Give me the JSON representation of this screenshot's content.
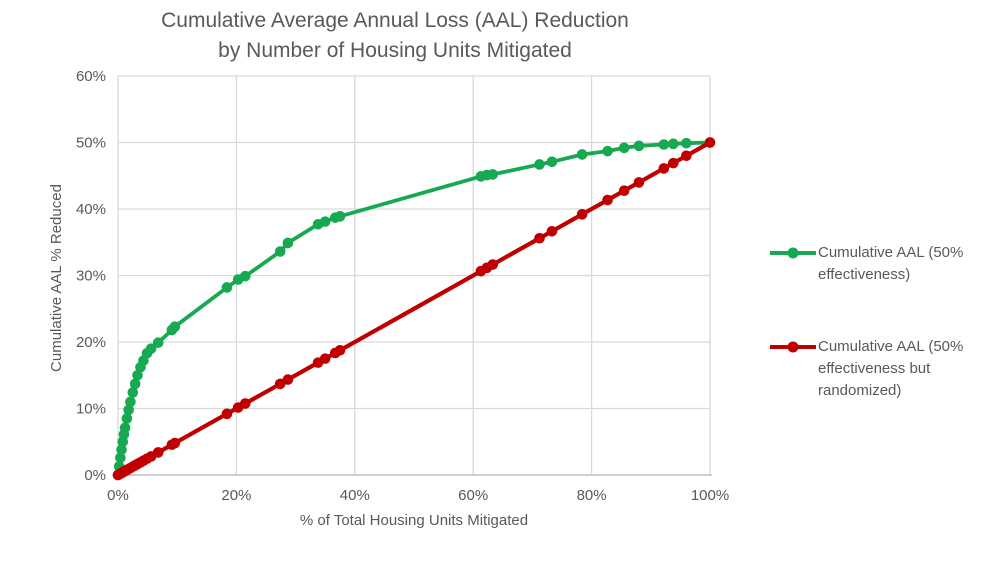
{
  "chart": {
    "title_line1": "Cumulative Average Annual Loss (AAL) Reduction",
    "title_line2": "by Number of Housing Units Mitigated",
    "x_axis_title": "% of Total Housing Units Mitigated",
    "y_axis_title": "Cumulative AAL % Reduced"
  },
  "colors": {
    "green_series": "#16A951",
    "red_series": "#C00000",
    "text": "#595959",
    "gridline": "#D9D9D9",
    "axis_line": "#BFBFBF",
    "background": "#FFFFFF"
  },
  "chart_data": {
    "type": "line",
    "title": "Cumulative Average Annual Loss (AAL) Reduction by Number of Housing Units Mitigated",
    "xlabel": "% of Total Housing Units Mitigated",
    "ylabel": "Cumulative AAL % Reduced",
    "xlim": [
      0,
      100
    ],
    "ylim": [
      0,
      60
    ],
    "x_tick_values": [
      0,
      20,
      40,
      60,
      80,
      100
    ],
    "x_tick_labels": [
      "0%",
      "20%",
      "40%",
      "60%",
      "80%",
      "100%"
    ],
    "y_tick_values": [
      0,
      10,
      20,
      30,
      40,
      50,
      60
    ],
    "y_tick_labels": [
      "0%",
      "10%",
      "20%",
      "30%",
      "40%",
      "50%",
      "60%"
    ],
    "grid": true,
    "legend_position": "right",
    "x": [
      0,
      0.2,
      0.4,
      0.6,
      0.8,
      1.0,
      1.2,
      1.5,
      1.8,
      2.1,
      2.5,
      2.9,
      3.3,
      3.8,
      4.3,
      4.9,
      5.6,
      6.8,
      9.1,
      9.6,
      18.4,
      20.3,
      21.5,
      27.4,
      28.7,
      33.8,
      35.0,
      36.7,
      37.5,
      61.3,
      62.3,
      63.3,
      71.2,
      73.3,
      78.4,
      82.7,
      85.5,
      88.0,
      92.2,
      93.8,
      96.0,
      100.0
    ],
    "series": [
      {
        "name": "Cumulative AAL (50% effectiveness)",
        "color": "#16A951",
        "marker": "circle",
        "line_width": 3.8,
        "values": [
          0,
          1.3,
          2.6,
          3.8,
          5.0,
          6.1,
          7.1,
          8.5,
          9.8,
          11.0,
          12.4,
          13.7,
          15.0,
          16.2,
          17.2,
          18.3,
          19.0,
          19.9,
          21.8,
          22.3,
          28.2,
          29.4,
          29.9,
          33.6,
          34.9,
          37.7,
          38.1,
          38.7,
          38.9,
          44.9,
          45.1,
          45.2,
          46.7,
          47.1,
          48.2,
          48.7,
          49.2,
          49.5,
          49.7,
          49.8,
          49.9,
          50.0
        ]
      },
      {
        "name": "Cumulative AAL (50% effectiveness but randomized)",
        "color": "#C00000",
        "marker": "circle",
        "line_width": 4.2,
        "values": [
          0,
          0.1,
          0.2,
          0.3,
          0.4,
          0.5,
          0.6,
          0.75,
          0.9,
          1.05,
          1.25,
          1.45,
          1.65,
          1.9,
          2.15,
          2.45,
          2.8,
          3.4,
          4.55,
          4.8,
          9.2,
          10.15,
          10.75,
          13.7,
          14.35,
          16.9,
          17.5,
          18.35,
          18.75,
          30.65,
          31.15,
          31.65,
          35.6,
          36.65,
          39.2,
          41.35,
          42.75,
          44.0,
          46.1,
          46.9,
          48.0,
          50.0
        ]
      }
    ]
  }
}
